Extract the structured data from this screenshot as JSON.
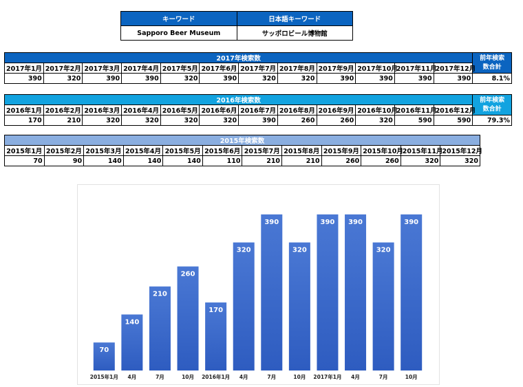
{
  "keyword_table": {
    "header_en": "キーワード",
    "header_jp": "日本語キーワード",
    "value_en": "Sapporo Beer Museum",
    "value_jp": "サッポロビール博物館"
  },
  "table_2017": {
    "title": "2017年検索数",
    "side_header_line1": "前年検索",
    "side_header_line2": "数合計",
    "months": [
      "2017年1月",
      "2017年2月",
      "2017年3月",
      "2017年4月",
      "2017年5月",
      "2017年6月",
      "2017年7月",
      "2017年8月",
      "2017年9月",
      "2017年10月",
      "2017年11月",
      "2017年12月"
    ],
    "values": [
      "390",
      "320",
      "390",
      "390",
      "320",
      "390",
      "320",
      "320",
      "390",
      "390",
      "390",
      "390"
    ],
    "side_value": "8.1%"
  },
  "table_2016": {
    "title": "2016年検索数",
    "side_header_line1": "前年検索",
    "side_header_line2": "数合計",
    "months": [
      "2016年1月",
      "2016年2月",
      "2016年3月",
      "2016年4月",
      "2016年5月",
      "2016年6月",
      "2016年7月",
      "2016年8月",
      "2016年9月",
      "2016年10月",
      "2016年11月",
      "2016年12月"
    ],
    "values": [
      "170",
      "210",
      "320",
      "320",
      "320",
      "320",
      "390",
      "260",
      "260",
      "320",
      "590",
      "590"
    ],
    "side_value": "79.3%"
  },
  "table_2015": {
    "title": "2015年検索数",
    "months": [
      "2015年1月",
      "2015年2月",
      "2015年3月",
      "2015年4月",
      "2015年5月",
      "2015年6月",
      "2015年7月",
      "2015年8月",
      "2015年9月",
      "2015年10月",
      "2015年11月",
      "2015年12月"
    ],
    "values": [
      "70",
      "90",
      "140",
      "140",
      "140",
      "110",
      "210",
      "210",
      "260",
      "260",
      "320",
      "320"
    ]
  },
  "chart_data": {
    "type": "bar",
    "categories": [
      "2015年1月",
      "4月",
      "7月",
      "10月",
      "2016年1月",
      "4月",
      "7月",
      "10月",
      "2017年1月",
      "4月",
      "7月",
      "10月"
    ],
    "values": [
      70,
      140,
      210,
      260,
      170,
      320,
      390,
      320,
      390,
      390,
      320,
      390
    ],
    "ylim": [
      0,
      450
    ],
    "grid": false,
    "bar_color_top": "#4a78d4",
    "bar_color_bottom": "#2e5cc0",
    "label_color": "#ffffff"
  }
}
